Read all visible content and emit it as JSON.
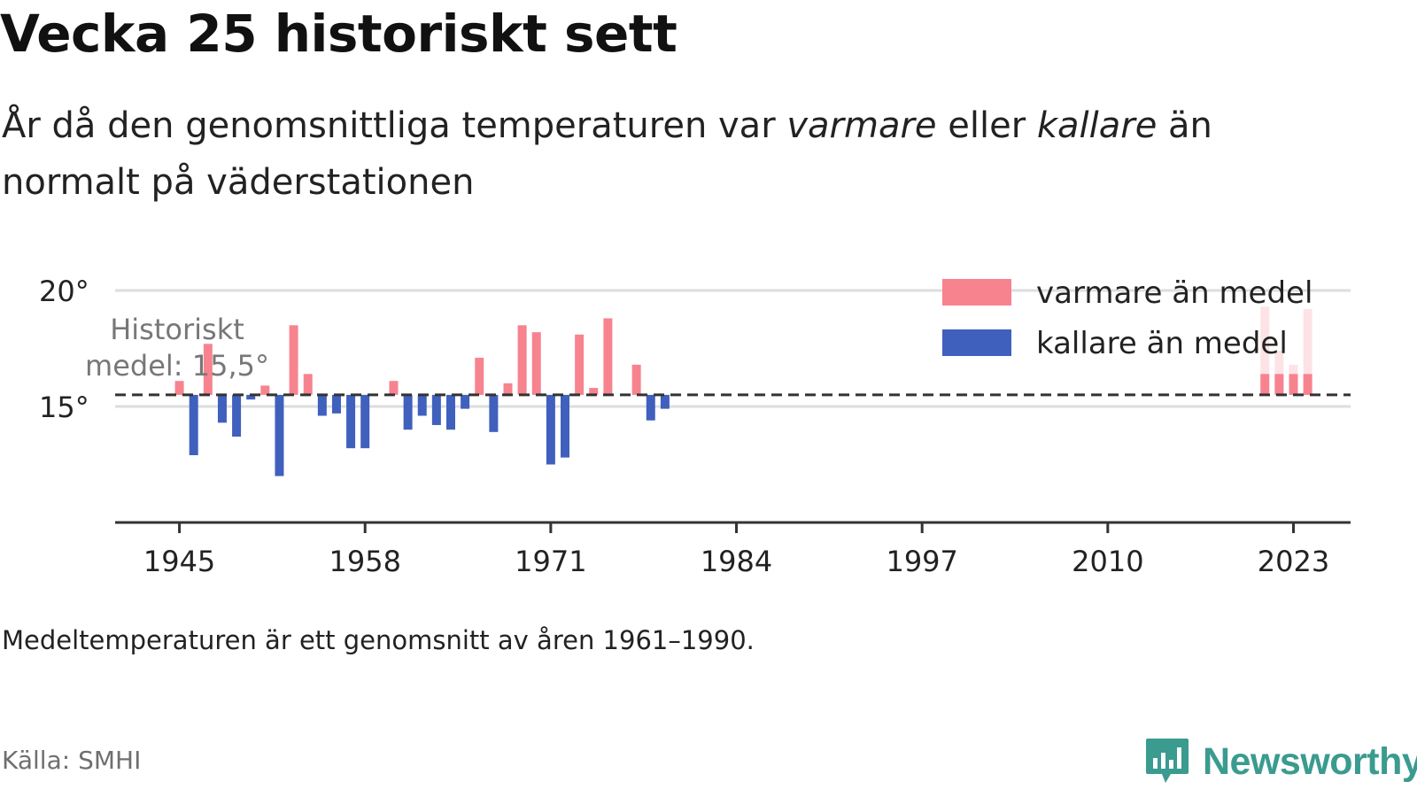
{
  "title": "Vecka 25 historiskt sett",
  "subtitle": {
    "part1": "År då den genomsnittliga temperaturen var ",
    "warm_word": "varmare",
    "part2": " eller ",
    "cold_word": "kallare",
    "part3": " än normalt på väderstationen"
  },
  "note": "Medeltemperaturen är ett genomsnitt av åren 1961–1990.",
  "source": "Källa: SMHI",
  "brand": {
    "name": "Newsworthy",
    "icon": "newsworthy-chart-logo-icon"
  },
  "colors": {
    "warm": "#f7838f",
    "cold": "#4060bd",
    "faded_warm": "#fde3e6",
    "axis": "#333333",
    "grid": "#dddddd"
  },
  "chart_data": {
    "type": "bar",
    "baseline": 15.5,
    "baseline_label": [
      "Historiskt",
      "medel: 15,5°"
    ],
    "ylim": [
      10,
      20
    ],
    "y_ticks": [
      15,
      20
    ],
    "y_tick_labels": [
      "15°",
      "20°"
    ],
    "xlim": [
      1940.5,
      2027
    ],
    "x_ticks": [
      1945,
      1958,
      1971,
      1984,
      1997,
      2010,
      2023
    ],
    "x_tick_labels": [
      "1945",
      "1958",
      "1971",
      "1984",
      "1997",
      "2010",
      "2023"
    ],
    "legend": [
      {
        "name": "varmare än medel",
        "color": "#f7838f"
      },
      {
        "name": "kallare än medel",
        "color": "#4060bd"
      }
    ],
    "legend_position": "top-right",
    "grid": true,
    "series": [
      {
        "name": "varmare än medel",
        "x": [
          1945,
          1947,
          1951,
          1953,
          1954,
          1960,
          1966,
          1968,
          1969,
          1970,
          1973,
          1974,
          1975,
          1977,
          2021,
          2022,
          2023,
          2024
        ],
        "values": [
          16.1,
          17.7,
          15.9,
          18.5,
          16.4,
          16.1,
          17.1,
          16.0,
          18.5,
          18.2,
          18.1,
          15.8,
          18.8,
          16.8,
          19.3,
          17.4,
          16.8,
          19.2
        ],
        "faded_top_from_2021": true
      },
      {
        "name": "kallare än medel",
        "x": [
          1946,
          1948,
          1949,
          1950,
          1952,
          1955,
          1956,
          1957,
          1958,
          1961,
          1962,
          1963,
          1964,
          1965,
          1967,
          1971,
          1972,
          1978,
          1979
        ],
        "values": [
          12.9,
          14.3,
          13.7,
          15.3,
          12.0,
          14.6,
          14.7,
          13.2,
          13.2,
          14.0,
          14.6,
          14.2,
          14.0,
          14.9,
          13.9,
          12.5,
          12.8,
          14.4,
          14.9
        ]
      }
    ]
  }
}
